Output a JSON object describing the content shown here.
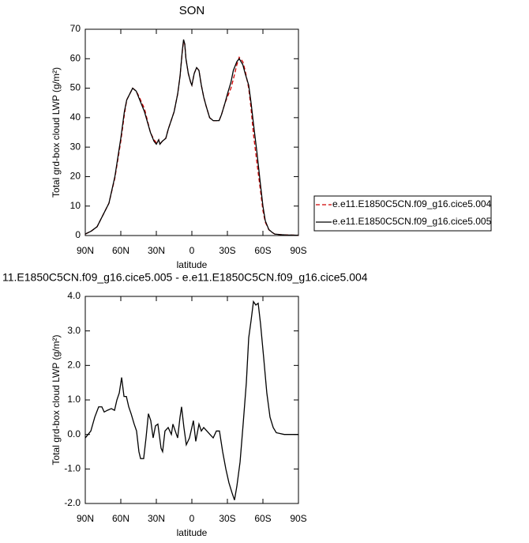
{
  "chart_data": [
    {
      "type": "line",
      "title": "SON",
      "xlabel": "latitude",
      "ylabel": "Total grd-box cloud LWP (g/m²)",
      "x": [
        90,
        85,
        80,
        75,
        70,
        65,
        60,
        57,
        55,
        50,
        47,
        45,
        40,
        35,
        32,
        30,
        28,
        27,
        25,
        22,
        20,
        15,
        12,
        10,
        8,
        7,
        6,
        5,
        3,
        1,
        0,
        -2,
        -4,
        -6,
        -8,
        -10,
        -12,
        -15,
        -18,
        -20,
        -23,
        -25,
        -28,
        -30,
        -33,
        -35,
        -38,
        -40,
        -43,
        -45,
        -48,
        -50,
        -52,
        -55,
        -58,
        -60,
        -62,
        -65,
        -68,
        -70,
        -75,
        -80,
        -90
      ],
      "series": [
        {
          "name": "e.e11.E1850C5CN.f09_g16.cice5.004",
          "color": "#d00000",
          "dash": "dashed",
          "values": [
            0.5,
            1.5,
            3,
            7,
            11,
            19.5,
            32,
            41,
            46,
            50,
            49,
            47.5,
            43,
            35,
            32.5,
            31.5,
            32.5,
            31,
            32,
            33,
            36,
            42,
            48,
            54,
            62.5,
            66,
            65,
            60,
            55,
            52,
            51,
            55,
            57,
            56,
            51,
            47,
            44,
            40,
            39,
            39,
            39,
            41,
            45,
            47,
            50,
            53,
            58,
            60.5,
            59,
            56,
            50,
            43,
            34.5,
            24.5,
            15,
            8.5,
            4.5,
            2,
            1,
            0.5,
            0.3,
            0.2,
            0.1
          ]
        },
        {
          "name": "e.e11.E1850C5CN.f09_g16.cice5.005",
          "color": "#000000",
          "dash": "solid",
          "values": [
            0.5,
            1.5,
            3,
            7,
            11,
            20,
            33,
            42,
            46,
            50,
            49,
            47,
            42,
            35,
            32,
            31,
            32.5,
            31,
            32,
            33,
            36,
            42,
            48,
            54,
            63,
            66.5,
            65,
            60,
            55,
            52,
            51,
            55,
            57,
            56,
            51,
            47,
            44,
            40,
            39,
            39,
            39,
            41,
            45,
            48,
            52,
            56,
            59,
            60,
            58,
            55,
            51,
            45,
            38,
            28,
            17,
            10,
            5,
            2,
            1,
            0.5,
            0.3,
            0.2,
            0.1
          ]
        }
      ],
      "xlim": [
        90,
        -90
      ],
      "xticks": [
        {
          "value": 90,
          "label": "90N"
        },
        {
          "value": 60,
          "label": "60N"
        },
        {
          "value": 30,
          "label": "30N"
        },
        0,
        {
          "value": -30,
          "label": "30S"
        },
        {
          "value": -60,
          "label": "60S"
        },
        {
          "value": -90,
          "label": "90S"
        }
      ],
      "ylim": [
        0,
        70
      ],
      "yticks": [
        0,
        10,
        20,
        30,
        40,
        50,
        60,
        70
      ],
      "legend": "right"
    },
    {
      "type": "line",
      "title": "11.E1850C5CN.f09_g16.cice5.005 - e.e11.E1850C5CN.f09_g16.cice5.004",
      "xlabel": "latitude",
      "ylabel": "Total grd-box cloud LWP (g/m²)",
      "x": [
        90,
        85.3,
        82,
        78.7,
        76,
        74,
        71.3,
        68,
        65.3,
        63.3,
        61.3,
        59.3,
        57.3,
        55.3,
        53.3,
        51.3,
        48.7,
        46.7,
        44.7,
        43.3,
        40.7,
        38.7,
        36.7,
        34.7,
        32.7,
        30.7,
        28.7,
        26,
        24.7,
        22.7,
        20,
        17.3,
        16,
        14,
        12,
        10,
        8.7,
        6.7,
        4.7,
        2,
        -1.3,
        -3.3,
        -6,
        -8,
        -10,
        -12.7,
        -15.3,
        -18,
        -20.7,
        -23.3,
        -26,
        -28.7,
        -31.3,
        -34,
        -36,
        -38,
        -40.7,
        -43.3,
        -46,
        -48,
        -50,
        -52,
        -54,
        -56,
        -58,
        -60.7,
        -63.3,
        -66,
        -68.7,
        -71.3,
        -78,
        -90
      ],
      "series": [
        {
          "color": "#000000",
          "dash": "solid",
          "values": [
            -0.1,
            0.1,
            0.5,
            0.8,
            0.8,
            0.65,
            0.7,
            0.75,
            0.7,
            1.0,
            1.2,
            1.65,
            1.1,
            1.1,
            0.8,
            0.6,
            0.3,
            0.1,
            -0.5,
            -0.7,
            -0.7,
            -0.1,
            0.6,
            0.4,
            -0.1,
            0.25,
            0.3,
            -0.4,
            -0.5,
            0.1,
            0.2,
            0.0,
            0.3,
            0.1,
            -0.1,
            0.5,
            0.8,
            0.2,
            -0.3,
            -0.1,
            0.4,
            -0.2,
            0.3,
            0.1,
            0.2,
            0.1,
            0.0,
            -0.1,
            0.1,
            0.1,
            -0.5,
            -1.0,
            -1.4,
            -1.7,
            -1.9,
            -1.5,
            -0.8,
            0.3,
            1.5,
            2.8,
            3.3,
            3.85,
            3.75,
            3.8,
            3.2,
            2.2,
            1.2,
            0.5,
            0.2,
            0.05,
            0.0,
            0.0
          ]
        }
      ],
      "xlim": [
        90,
        -90
      ],
      "xticks": [
        {
          "value": 90,
          "label": "90N"
        },
        {
          "value": 60,
          "label": "60N"
        },
        {
          "value": 30,
          "label": "30N"
        },
        0,
        {
          "value": -30,
          "label": "30S"
        },
        {
          "value": -60,
          "label": "60S"
        },
        {
          "value": -90,
          "label": "90S"
        }
      ],
      "ylim": [
        -2,
        4
      ],
      "yticks": [
        {
          "value": -2,
          "label": "-2.0"
        },
        {
          "value": -1,
          "label": "-1.0"
        },
        {
          "value": 0,
          "label": "0.0"
        },
        {
          "value": 1,
          "label": "1.0"
        },
        {
          "value": 2,
          "label": "2.0"
        },
        {
          "value": 3,
          "label": "3.0"
        },
        {
          "value": 4,
          "label": "4.0"
        }
      ]
    }
  ]
}
